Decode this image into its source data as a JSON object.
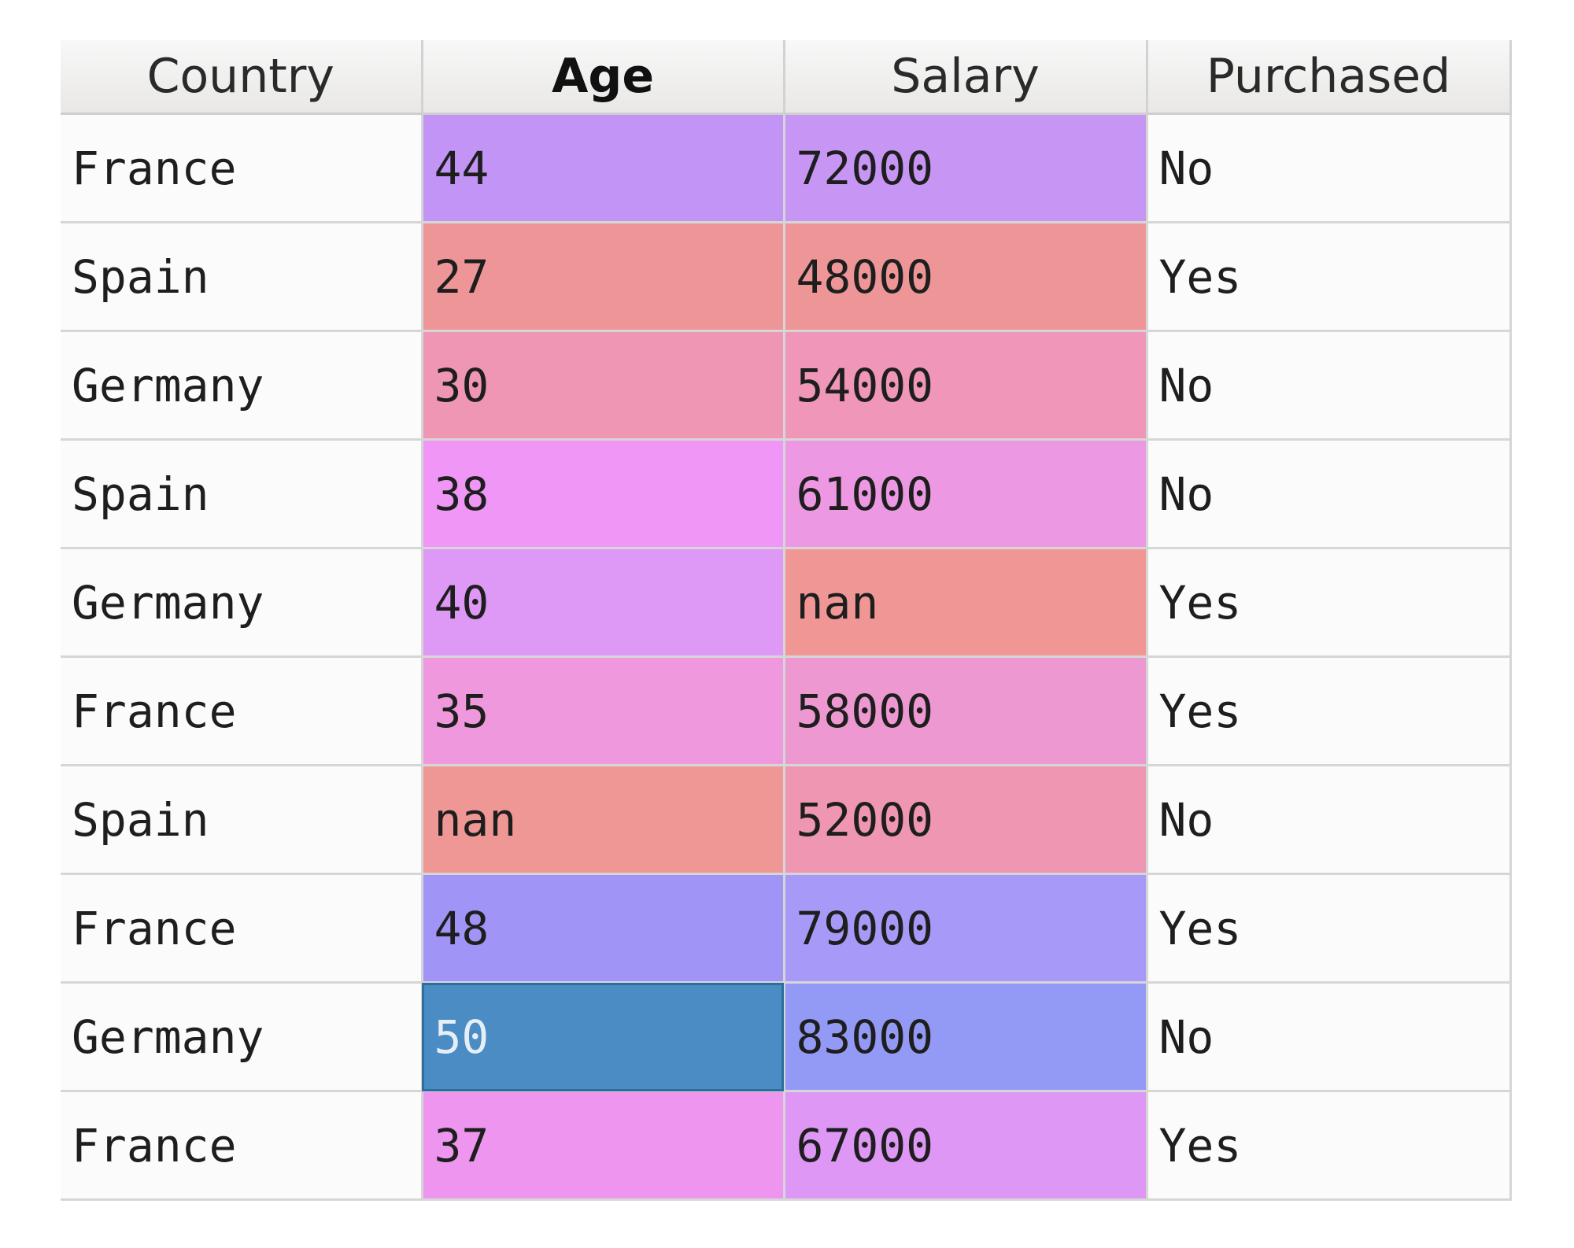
{
  "table": {
    "columns": [
      {
        "label": "Country",
        "sorted": false
      },
      {
        "label": "Age",
        "sorted": true
      },
      {
        "label": "Salary",
        "sorted": false
      },
      {
        "label": "Purchased",
        "sorted": false
      }
    ],
    "rows": [
      {
        "country": "France",
        "age": "44",
        "salary": "72000",
        "purchased": "No",
        "age_bg": "#c194f6",
        "salary_bg": "#c796f4"
      },
      {
        "country": "Spain",
        "age": "27",
        "salary": "48000",
        "purchased": "Yes",
        "age_bg": "#ee9697",
        "salary_bg": "#ee9697"
      },
      {
        "country": "Germany",
        "age": "30",
        "salary": "54000",
        "purchased": "No",
        "age_bg": "#ef96b5",
        "salary_bg": "#ef96b9"
      },
      {
        "country": "Spain",
        "age": "38",
        "salary": "61000",
        "purchased": "No",
        "age_bg": "#ef96f6",
        "salary_bg": "#ed98e3"
      },
      {
        "country": "Germany",
        "age": "40",
        "salary": "nan",
        "purchased": "Yes",
        "age_bg": "#de98f6",
        "salary_bg": "#f09795"
      },
      {
        "country": "France",
        "age": "35",
        "salary": "58000",
        "purchased": "Yes",
        "age_bg": "#ef98de",
        "salary_bg": "#ee98d2"
      },
      {
        "country": "Spain",
        "age": "nan",
        "salary": "52000",
        "purchased": "No",
        "age_bg": "#ef9795",
        "salary_bg": "#ef96b2"
      },
      {
        "country": "France",
        "age": "48",
        "salary": "79000",
        "purchased": "Yes",
        "age_bg": "#a095f6",
        "salary_bg": "#a799f7"
      },
      {
        "country": "Germany",
        "age": "50",
        "salary": "83000",
        "purchased": "No",
        "age_bg": "#4a8cc3",
        "salary_bg": "#939af5",
        "age_selected": true
      },
      {
        "country": "France",
        "age": "37",
        "salary": "67000",
        "purchased": "Yes",
        "age_bg": "#ee96ef",
        "salary_bg": "#df97f6"
      }
    ],
    "selected_text_color": "#e6eef6"
  }
}
